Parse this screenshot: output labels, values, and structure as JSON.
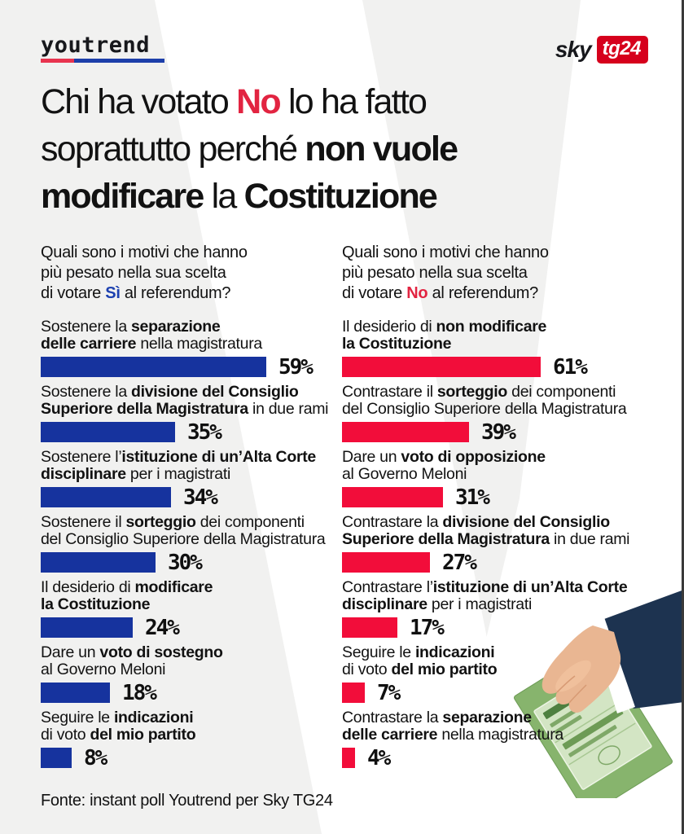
{
  "colors": {
    "background": "#f1f1f0",
    "bar_blue": "#16339e",
    "bar_red": "#f20d3a",
    "text_red": "#e22441",
    "text_blue": "#1d41b0",
    "sky_badge_red": "#d6001c",
    "youtrend_underline_red": "#e8344f",
    "youtrend_underline_blue": "#1d3faa"
  },
  "header": {
    "youtrend": "youtrend",
    "sky": "sky",
    "tg24": "tg24"
  },
  "title": {
    "lines": [
      [
        {
          "t": "Chi ha votato "
        },
        {
          "t": "No",
          "b": 1,
          "r": 1
        },
        {
          "t": " lo ha fatto"
        }
      ],
      [
        {
          "t": "soprattutto perché "
        },
        {
          "t": "non vuole",
          "b": 1
        }
      ],
      [
        {
          "t": "modificare",
          "b": 1
        },
        {
          "t": " la "
        },
        {
          "t": "Costituzione",
          "b": 1
        }
      ]
    ]
  },
  "left": {
    "bar_color": "#16339e",
    "question": [
      [
        {
          "t": "Quali sono i motivi  che hanno"
        }
      ],
      [
        {
          "t": "più pesato nella sua scelta"
        }
      ],
      [
        {
          "t": "di votare "
        },
        {
          "t": "Sì",
          "bl": 1
        },
        {
          "t": " al referendum?"
        }
      ]
    ],
    "items": [
      {
        "label": [
          [
            {
              "t": "Sostenere la "
            },
            {
              "t": "separazione",
              "b": 1
            }
          ],
          [
            {
              "t": "delle carriere",
              "b": 1
            },
            {
              "t": " nella magistratura"
            }
          ]
        ],
        "value": 59,
        "pct": "59%"
      },
      {
        "label": [
          [
            {
              "t": "Sostenere la "
            },
            {
              "t": "divisione del Consiglio",
              "b": 1
            }
          ],
          [
            {
              "t": "Superiore della Magistratura",
              "b": 1
            },
            {
              "t": " in due rami"
            }
          ]
        ],
        "value": 35,
        "pct": "35%"
      },
      {
        "label": [
          [
            {
              "t": "Sostenere l’"
            },
            {
              "t": "istituzione di un’Alta Corte",
              "b": 1
            }
          ],
          [
            {
              "t": "disciplinare",
              "b": 1
            },
            {
              "t": " per i magistrati"
            }
          ]
        ],
        "value": 34,
        "pct": "34%"
      },
      {
        "label": [
          [
            {
              "t": "Sostenere il "
            },
            {
              "t": "sorteggio",
              "b": 1
            },
            {
              "t": " dei componenti"
            }
          ],
          [
            {
              "t": "del Consiglio Superiore della Magistratura"
            }
          ]
        ],
        "value": 30,
        "pct": "30%"
      },
      {
        "label": [
          [
            {
              "t": "Il desiderio di "
            },
            {
              "t": "modificare",
              "b": 1
            }
          ],
          [
            {
              "t": "la Costituzione",
              "b": 1
            }
          ]
        ],
        "value": 24,
        "pct": "24%"
      },
      {
        "label": [
          [
            {
              "t": "Dare un "
            },
            {
              "t": "voto di sostegno",
              "b": 1
            }
          ],
          [
            {
              "t": "al Governo Meloni"
            }
          ]
        ],
        "value": 18,
        "pct": "18%"
      },
      {
        "label": [
          [
            {
              "t": "Seguire le "
            },
            {
              "t": "indicazioni",
              "b": 1
            }
          ],
          [
            {
              "t": "di voto "
            },
            {
              "t": "del mio partito",
              "b": 1
            }
          ]
        ],
        "value": 8,
        "pct": "8%"
      }
    ]
  },
  "right": {
    "bar_color": "#f20d3a",
    "question": [
      [
        {
          "t": "Quali sono i motivi che hanno"
        }
      ],
      [
        {
          "t": "più pesato nella sua scelta"
        }
      ],
      [
        {
          "t": "di votare "
        },
        {
          "t": "No",
          "r": 1
        },
        {
          "t": " al referendum?"
        }
      ]
    ],
    "items": [
      {
        "label": [
          [
            {
              "t": "Il desiderio di "
            },
            {
              "t": "non modificare",
              "b": 1
            }
          ],
          [
            {
              "t": "la Costituzione",
              "b": 1
            }
          ]
        ],
        "value": 61,
        "pct": "61%"
      },
      {
        "label": [
          [
            {
              "t": "Contrastare il "
            },
            {
              "t": "sorteggio",
              "b": 1
            },
            {
              "t": " dei componenti"
            }
          ],
          [
            {
              "t": "del Consiglio Superiore della Magistratura"
            }
          ]
        ],
        "value": 39,
        "pct": "39%"
      },
      {
        "label": [
          [
            {
              "t": "Dare un "
            },
            {
              "t": "voto di opposizione",
              "b": 1
            }
          ],
          [
            {
              "t": "al Governo Meloni"
            }
          ]
        ],
        "value": 31,
        "pct": "31%"
      },
      {
        "label": [
          [
            {
              "t": "Contrastare la "
            },
            {
              "t": "divisione del Consiglio",
              "b": 1
            }
          ],
          [
            {
              "t": "Superiore della Magistratura",
              "b": 1
            },
            {
              "t": " in due rami"
            }
          ]
        ],
        "value": 27,
        "pct": "27%"
      },
      {
        "label": [
          [
            {
              "t": "Contrastare l’"
            },
            {
              "t": "istituzione di un’Alta Corte",
              "b": 1
            }
          ],
          [
            {
              "t": "disciplinare",
              "b": 1
            },
            {
              "t": " per i magistrati"
            }
          ]
        ],
        "value": 17,
        "pct": "17%"
      },
      {
        "label": [
          [
            {
              "t": "Seguire le "
            },
            {
              "t": "indicazioni",
              "b": 1
            }
          ],
          [
            {
              "t": "di voto "
            },
            {
              "t": "del mio partito",
              "b": 1
            }
          ]
        ],
        "value": 7,
        "pct": "7%"
      },
      {
        "label": [
          [
            {
              "t": "Contrastare la "
            },
            {
              "t": "separazione",
              "b": 1
            }
          ],
          [
            {
              "t": "delle carriere",
              "b": 1
            },
            {
              "t": " nella magistratura"
            }
          ]
        ],
        "value": 4,
        "pct": "4%"
      }
    ]
  },
  "footer": {
    "source": "Fonte: instant poll Youtrend per Sky TG24"
  },
  "chart_data": [
    {
      "type": "bar",
      "orientation": "horizontal",
      "title": "Quali sono i motivi che hanno più pesato nella sua scelta di votare Sì al referendum?",
      "categories": [
        "Sostenere la separazione delle carriere nella magistratura",
        "Sostenere la divisione del Consiglio Superiore della Magistratura in due rami",
        "Sostenere l’istituzione di un’Alta Corte disciplinare per i magistrati",
        "Sostenere il sorteggio dei componenti del Consiglio Superiore della Magistratura",
        "Il desiderio di modificare la Costituzione",
        "Dare un voto di sostegno al Governo Meloni",
        "Seguire le indicazioni di voto del mio partito"
      ],
      "values": [
        59,
        35,
        34,
        30,
        24,
        18,
        8
      ],
      "unit": "%",
      "bar_color": "#16339e",
      "xlim": [
        0,
        100
      ],
      "grid": false,
      "data_labels": true
    },
    {
      "type": "bar",
      "orientation": "horizontal",
      "title": "Quali sono i motivi che hanno più pesato nella sua scelta di votare No al referendum?",
      "categories": [
        "Il desiderio di non modificare la Costituzione",
        "Contrastare il sorteggio dei componenti del Consiglio Superiore della Magistratura",
        "Dare un voto di opposizione al Governo Meloni",
        "Contrastare la divisione del Consiglio Superiore della Magistratura in due rami",
        "Contrastare l’istituzione di un’Alta Corte disciplinare per i magistrati",
        "Seguire le indicazioni di voto del mio partito",
        "Contrastare la separazione delle carriere nella magistratura"
      ],
      "values": [
        61,
        39,
        31,
        27,
        17,
        7,
        4
      ],
      "unit": "%",
      "bar_color": "#f20d3a",
      "xlim": [
        0,
        100
      ],
      "grid": false,
      "data_labels": true
    }
  ]
}
